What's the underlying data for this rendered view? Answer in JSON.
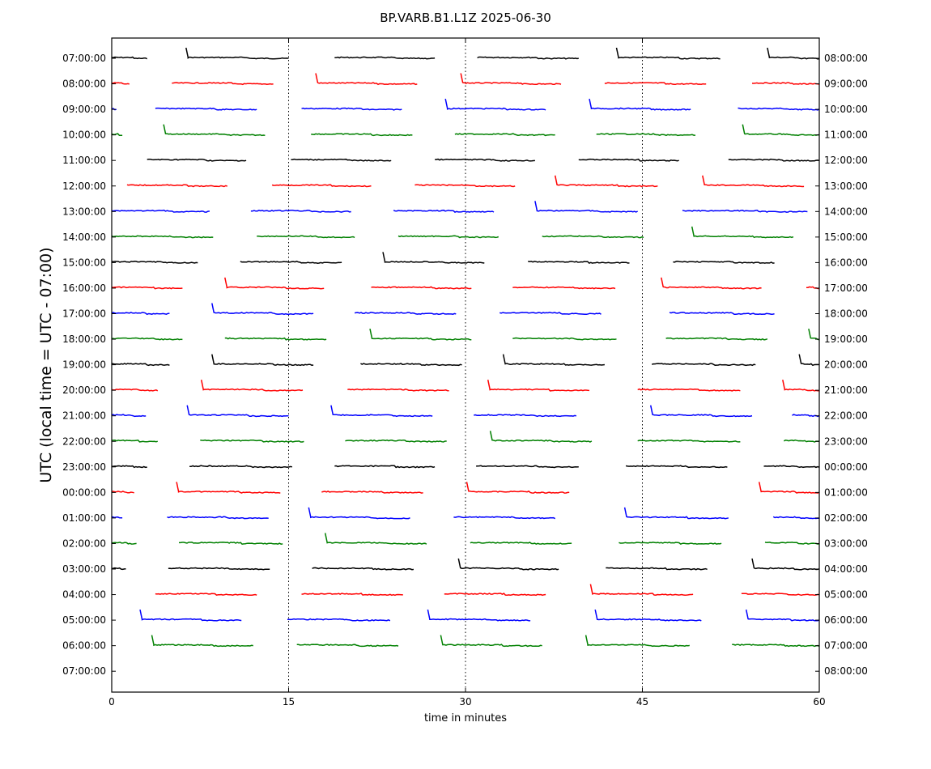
{
  "chart_data": {
    "type": "line",
    "title": "BP.VARB.B1.L1Z 2025-06-30",
    "xlabel": "time in minutes",
    "ylabel": "UTC (local time = UTC - 07:00)",
    "xlim": [
      0,
      60
    ],
    "x_ticks": [
      "0",
      "15",
      "30",
      "45",
      "60"
    ],
    "vertical_gridlines_at": [
      15,
      30,
      45
    ],
    "y_ticks_left": [
      "07:00:00",
      "08:00:00",
      "09:00:00",
      "10:00:00",
      "11:00:00",
      "12:00:00",
      "13:00:00",
      "14:00:00",
      "15:00:00",
      "16:00:00",
      "17:00:00",
      "18:00:00",
      "19:00:00",
      "20:00:00",
      "21:00:00",
      "22:00:00",
      "23:00:00",
      "00:00:00",
      "01:00:00",
      "02:00:00",
      "03:00:00",
      "04:00:00",
      "05:00:00",
      "06:00:00",
      "07:00:00"
    ],
    "y_ticks_right": [
      "08:00:00",
      "09:00:00",
      "10:00:00",
      "11:00:00",
      "12:00:00",
      "13:00:00",
      "14:00:00",
      "15:00:00",
      "16:00:00",
      "17:00:00",
      "18:00:00",
      "19:00:00",
      "20:00:00",
      "21:00:00",
      "22:00:00",
      "23:00:00",
      "00:00:00",
      "01:00:00",
      "02:00:00",
      "03:00:00",
      "04:00:00",
      "05:00:00",
      "06:00:00",
      "07:00:00",
      "08:00:00"
    ],
    "trace_colors": [
      "#000000",
      "#ff0000",
      "#0000ff",
      "#008000"
    ],
    "rows": [
      {
        "segments": [
          [
            0,
            3
          ],
          [
            6.3,
            15
          ],
          [
            18.9,
            27.4
          ],
          [
            31,
            39.6
          ],
          [
            42.8,
            51.6
          ],
          [
            55.6,
            60
          ]
        ],
        "steps": [
          6.3,
          42.8,
          55.6
        ]
      },
      {
        "segments": [
          [
            0,
            1.5
          ],
          [
            5.1,
            13.7
          ],
          [
            17.3,
            25.9
          ],
          [
            29.6,
            38.1
          ],
          [
            41.8,
            50.4
          ],
          [
            54.3,
            60
          ]
        ],
        "steps": [
          17.3,
          29.6
        ]
      },
      {
        "segments": [
          [
            0,
            0.4
          ],
          [
            3.7,
            12.3
          ],
          [
            16.1,
            24.6
          ],
          [
            28.3,
            36.8
          ],
          [
            40.5,
            49.1
          ],
          [
            53.1,
            60
          ]
        ],
        "steps": [
          28.3,
          40.5
        ]
      },
      {
        "segments": [
          [
            0,
            0.9
          ],
          [
            4.4,
            13
          ],
          [
            16.9,
            25.5
          ],
          [
            29.1,
            37.6
          ],
          [
            41.1,
            49.5
          ],
          [
            53.5,
            60
          ]
        ],
        "steps": [
          4.4,
          53.5
        ]
      },
      {
        "segments": [
          [
            3,
            11.4
          ],
          [
            15.2,
            23.7
          ],
          [
            27.4,
            35.9
          ],
          [
            39.6,
            48.1
          ],
          [
            52.3,
            60
          ]
        ],
        "steps": []
      },
      {
        "segments": [
          [
            1.3,
            9.8
          ],
          [
            13.6,
            22
          ],
          [
            25.7,
            34.2
          ],
          [
            37.6,
            46.3
          ],
          [
            50.1,
            58.7
          ]
        ],
        "steps": [
          37.6,
          50.1
        ]
      },
      {
        "segments": [
          [
            0,
            8.3
          ],
          [
            11.8,
            20.3
          ],
          [
            23.9,
            32.4
          ],
          [
            35.9,
            44.6
          ],
          [
            48.4,
            59
          ]
        ],
        "steps": [
          35.9
        ]
      },
      {
        "segments": [
          [
            0,
            8.6
          ],
          [
            12.3,
            20.6
          ],
          [
            24.3,
            32.8
          ],
          [
            36.5,
            45.1
          ],
          [
            49.2,
            57.8
          ]
        ],
        "steps": [
          49.2
        ]
      },
      {
        "segments": [
          [
            0,
            7.3
          ],
          [
            10.9,
            19.5
          ],
          [
            23,
            31.6
          ],
          [
            35.3,
            43.9
          ],
          [
            47.6,
            56.2
          ]
        ],
        "steps": [
          23
        ]
      },
      {
        "segments": [
          [
            0,
            6
          ],
          [
            9.6,
            18
          ],
          [
            22,
            30.5
          ],
          [
            34,
            42.7
          ],
          [
            46.6,
            55.1
          ],
          [
            58.9,
            60
          ]
        ],
        "steps": [
          9.6,
          46.6
        ]
      },
      {
        "segments": [
          [
            0,
            4.9
          ],
          [
            8.5,
            17.1
          ],
          [
            20.6,
            29.2
          ],
          [
            32.9,
            41.5
          ],
          [
            47.3,
            56.2
          ]
        ],
        "steps": [
          8.5
        ]
      },
      {
        "segments": [
          [
            0,
            6
          ],
          [
            9.6,
            18.2
          ],
          [
            21.9,
            30.5
          ],
          [
            34,
            42.8
          ],
          [
            47,
            55.6
          ],
          [
            59.1,
            60
          ]
        ],
        "steps": [
          21.9,
          59.1
        ]
      },
      {
        "segments": [
          [
            0,
            4.9
          ],
          [
            8.5,
            17.1
          ],
          [
            21.1,
            29.7
          ],
          [
            33.2,
            41.8
          ],
          [
            45.8,
            54.6
          ],
          [
            58.3,
            60
          ]
        ],
        "steps": [
          8.5,
          33.2,
          58.3
        ]
      },
      {
        "segments": [
          [
            0,
            3.9
          ],
          [
            7.6,
            16.2
          ],
          [
            20,
            28.6
          ],
          [
            31.9,
            40.5
          ],
          [
            44.6,
            53.3
          ],
          [
            56.9,
            60
          ]
        ],
        "steps": [
          7.6,
          31.9,
          56.9
        ]
      },
      {
        "segments": [
          [
            0,
            2.9
          ],
          [
            6.4,
            15
          ],
          [
            18.6,
            27.2
          ],
          [
            30.7,
            39.4
          ],
          [
            45.7,
            54.3
          ],
          [
            57.7,
            60
          ]
        ],
        "steps": [
          6.4,
          18.6,
          45.7
        ]
      },
      {
        "segments": [
          [
            0,
            3.9
          ],
          [
            7.5,
            16.3
          ],
          [
            19.8,
            28.4
          ],
          [
            32.1,
            40.7
          ],
          [
            44.6,
            53.3
          ],
          [
            57,
            60
          ]
        ],
        "steps": [
          32.1
        ]
      },
      {
        "segments": [
          [
            0,
            3
          ],
          [
            6.6,
            15.3
          ],
          [
            18.9,
            27.4
          ],
          [
            30.9,
            39.6
          ],
          [
            43.6,
            52.2
          ],
          [
            55.3,
            60
          ]
        ],
        "steps": []
      },
      {
        "segments": [
          [
            0,
            1.9
          ],
          [
            5.5,
            14.3
          ],
          [
            17.8,
            26.4
          ],
          [
            30.1,
            38.8
          ],
          [
            54.9,
            60
          ]
        ],
        "steps": [
          5.5,
          30.1,
          54.9
        ]
      },
      {
        "segments": [
          [
            0,
            0.9
          ],
          [
            4.7,
            13.3
          ],
          [
            16.7,
            25.3
          ],
          [
            29,
            37.6
          ],
          [
            43.5,
            52.3
          ],
          [
            56.1,
            60
          ]
        ],
        "steps": [
          16.7,
          43.5
        ]
      },
      {
        "segments": [
          [
            0,
            2.1
          ],
          [
            5.7,
            14.5
          ],
          [
            18.1,
            26.7
          ],
          [
            30.4,
            39
          ],
          [
            43,
            51.7
          ],
          [
            55.4,
            60
          ]
        ],
        "steps": [
          18.1
        ]
      },
      {
        "segments": [
          [
            0,
            1.2
          ],
          [
            4.8,
            13.4
          ],
          [
            17,
            25.6
          ],
          [
            29.4,
            37.9
          ],
          [
            41.9,
            50.5
          ],
          [
            54.3,
            60
          ]
        ],
        "steps": [
          29.4,
          54.3
        ]
      },
      {
        "segments": [
          [
            3.7,
            12.3
          ],
          [
            16.1,
            24.7
          ],
          [
            28.2,
            36.8
          ],
          [
            40.6,
            49.3
          ],
          [
            53.4,
            60
          ]
        ],
        "steps": [
          40.6
        ]
      },
      {
        "segments": [
          [
            2.4,
            11
          ],
          [
            14.9,
            23.6
          ],
          [
            26.8,
            35.5
          ],
          [
            41,
            50
          ],
          [
            53.8,
            60
          ]
        ],
        "steps": [
          2.4,
          26.8,
          41,
          53.8
        ]
      },
      {
        "segments": [
          [
            3.4,
            12
          ],
          [
            15.7,
            24.3
          ],
          [
            27.9,
            36.5
          ],
          [
            40.2,
            49
          ],
          [
            52.6,
            60
          ]
        ],
        "steps": [
          3.4,
          27.9,
          40.2
        ]
      }
    ]
  }
}
